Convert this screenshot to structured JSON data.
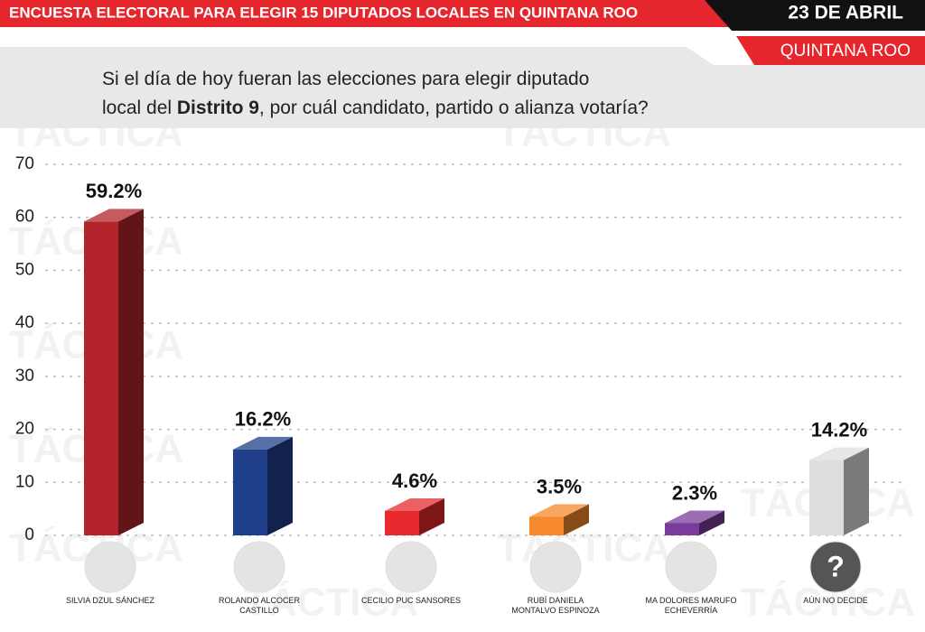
{
  "chart_data": {
    "type": "bar3d",
    "title": "ENCUESTA ELECTORAL PARA ELEGIR 15 DIPUTADOS LOCALES EN QUINTANA ROO",
    "date": "23 DE ABRIL",
    "location": "QUINTANA ROO",
    "question": [
      "Si el día de hoy fueran las elecciones para elegir diputado",
      "local del ",
      "Distrito 9",
      ", por cuál candidato, partido o alianza votaría?"
    ],
    "watermark": "TÁCTICA",
    "categories": [
      "SILVIA DZUL SÁNCHEZ",
      "ROLANDO ALCOCER CASTILLO",
      "CECILIO PUC SANSORES",
      "RUBÍ DANIELA MONTALVO ESPINOZA",
      "MA DOLORES MARUFO ECHEVERRÍA",
      "AÚN NO DECIDE"
    ],
    "values": [
      59.2,
      16.2,
      4.6,
      3.5,
      2.3,
      14.2
    ],
    "value_labels": [
      "59.2%",
      "16.2%",
      "4.6%",
      "3.5%",
      "2.3%",
      "14.2%"
    ],
    "colors": [
      "#b3242a",
      "#1f3f8a",
      "#e62a2e",
      "#f5892c",
      "#7a3c9a",
      "#dedede"
    ],
    "unknown_icon": "?",
    "ylim": [
      0,
      70
    ],
    "yticks": [
      0,
      10,
      20,
      30,
      40,
      50,
      60,
      70
    ],
    "grid": true
  }
}
